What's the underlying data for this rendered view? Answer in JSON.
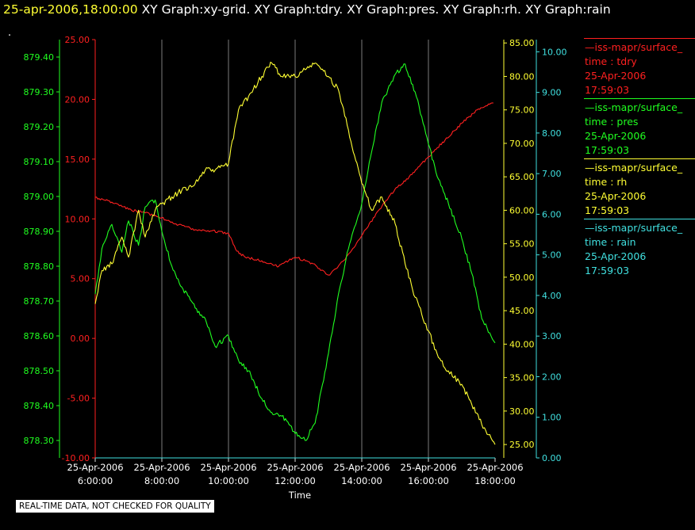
{
  "header": {
    "timestamp": "25-apr-2006,18:00:00",
    "titles": [
      "XY Graph:xy-grid.",
      "XY Graph:tdry.",
      "XY Graph:pres.",
      "XY Graph:rh.",
      "XY Graph:rain"
    ]
  },
  "dot": ".",
  "notice": "REAL-TIME DATA, NOT CHECKED FOR QUALITY",
  "legend": [
    {
      "source": "—iss-mapr/surface_",
      "field": "time : tdry",
      "date": "25-Apr-2006",
      "time": "17:59:03",
      "color": "#ff2020"
    },
    {
      "source": "—iss-mapr/surface_",
      "field": "time : pres",
      "date": "25-Apr-2006",
      "time": "17:59:03",
      "color": "#20ff20"
    },
    {
      "source": "—iss-mapr/surface_",
      "field": "time : rh",
      "date": "25-Apr-2006",
      "time": "17:59:03",
      "color": "#ffff33"
    },
    {
      "source": "—iss-mapr/surface_",
      "field": "time : rain",
      "date": "25-Apr-2006",
      "time": "17:59:03",
      "color": "#40e0e0"
    }
  ],
  "chart_data": {
    "type": "line",
    "xlabel": "Time",
    "x_range": [
      "06:00",
      "18:00"
    ],
    "x_ticks": [
      {
        "date": "25-Apr-2006",
        "time": "6:00:00"
      },
      {
        "date": "25-Apr-2006",
        "time": "8:00:00"
      },
      {
        "date": "25-Apr-2006",
        "time": "10:00:00"
      },
      {
        "date": "25-Apr-2006",
        "time": "12:00:00"
      },
      {
        "date": "25-Apr-2006",
        "time": "14:00:00"
      },
      {
        "date": "25-Apr-2006",
        "time": "16:00:00"
      },
      {
        "date": "25-Apr-2006",
        "time": "18:00:00"
      }
    ],
    "grid": "vertical",
    "axes": [
      {
        "id": "pres",
        "color": "#20ff20",
        "range": [
          878.25,
          879.45
        ],
        "ticks": [
          "878.30",
          "878.40",
          "878.50",
          "878.60",
          "878.70",
          "878.80",
          "878.90",
          "879.00",
          "879.10",
          "879.20",
          "879.30",
          "879.40"
        ]
      },
      {
        "id": "tdry",
        "color": "#ff2020",
        "range": [
          -10,
          25
        ],
        "ticks": [
          "-10.00",
          "-5.00",
          "0.00",
          "5.00",
          "10.00",
          "15.00",
          "20.00",
          "25.00"
        ]
      },
      {
        "id": "rh",
        "color": "#ffff33",
        "range": [
          23,
          85.5
        ],
        "ticks": [
          "25.00",
          "30.00",
          "35.00",
          "40.00",
          "45.00",
          "50.00",
          "55.00",
          "60.00",
          "65.00",
          "70.00",
          "75.00",
          "80.00",
          "85.00"
        ]
      },
      {
        "id": "rain",
        "color": "#40e0e0",
        "range": [
          0,
          10.3
        ],
        "ticks": [
          "0.00",
          "1.00",
          "2.00",
          "3.00",
          "4.00",
          "5.00",
          "6.00",
          "7.00",
          "8.00",
          "9.00",
          "10.00"
        ]
      }
    ],
    "series": [
      {
        "id": "tdry",
        "axis": "tdry",
        "color": "#ff2020",
        "x": [
          6.0,
          6.5,
          7.0,
          7.5,
          8.0,
          8.5,
          9.0,
          9.5,
          10.0,
          10.25,
          10.5,
          11.0,
          11.5,
          12.0,
          12.5,
          13.0,
          13.5,
          14.0,
          14.5,
          15.0,
          15.5,
          16.0,
          16.5,
          17.0,
          17.5,
          17.95
        ],
        "y": [
          11.8,
          11.4,
          10.8,
          10.5,
          10.1,
          9.5,
          9.1,
          9.0,
          8.8,
          7.3,
          6.8,
          6.5,
          6.0,
          6.8,
          6.3,
          5.3,
          6.6,
          8.6,
          10.7,
          12.5,
          13.7,
          15.2,
          16.6,
          18.0,
          19.2,
          19.7
        ]
      },
      {
        "id": "pres",
        "axis": "pres",
        "color": "#20ff20",
        "x": [
          6.0,
          6.2,
          6.5,
          6.8,
          7.0,
          7.3,
          7.5,
          7.8,
          8.0,
          8.3,
          8.6,
          9.0,
          9.3,
          9.6,
          10.0,
          10.3,
          10.6,
          11.0,
          11.3,
          11.6,
          12.0,
          12.3,
          12.6,
          13.0,
          13.3,
          13.6,
          14.0,
          14.3,
          14.6,
          15.0,
          15.3,
          15.6,
          16.0,
          16.3,
          16.6,
          17.0,
          17.3,
          17.6,
          18.0
        ],
        "y": [
          878.72,
          878.85,
          878.92,
          878.84,
          878.93,
          878.86,
          878.97,
          878.99,
          878.9,
          878.8,
          878.74,
          878.68,
          878.65,
          878.57,
          878.6,
          878.53,
          878.5,
          878.42,
          878.38,
          878.37,
          878.32,
          878.3,
          878.35,
          878.55,
          878.72,
          878.85,
          878.98,
          879.13,
          879.27,
          879.35,
          879.38,
          879.3,
          879.15,
          879.05,
          878.98,
          878.88,
          878.78,
          878.65,
          878.58
        ]
      },
      {
        "id": "rh",
        "axis": "rh",
        "color": "#ffff33",
        "x": [
          6.0,
          6.2,
          6.5,
          6.8,
          7.0,
          7.3,
          7.5,
          7.8,
          8.0,
          8.3,
          8.6,
          9.0,
          9.3,
          9.6,
          10.0,
          10.3,
          10.6,
          11.0,
          11.3,
          11.6,
          12.0,
          12.3,
          12.6,
          13.0,
          13.3,
          13.6,
          14.0,
          14.3,
          14.6,
          15.0,
          15.3,
          15.6,
          16.0,
          16.3,
          16.6,
          17.0,
          17.3,
          17.6,
          18.0
        ],
        "y": [
          46.0,
          51.0,
          52.0,
          56.0,
          53.0,
          60.0,
          56.0,
          60.0,
          61.0,
          62.0,
          63.0,
          64.0,
          66.0,
          66.0,
          67.0,
          75.0,
          77.0,
          80.0,
          82.0,
          80.0,
          80.0,
          81.0,
          82.0,
          80.0,
          78.0,
          72.0,
          64.0,
          60.0,
          62.0,
          58.0,
          52.0,
          47.0,
          42.0,
          38.0,
          36.0,
          34.0,
          31.0,
          28.0,
          25.0
        ]
      },
      {
        "id": "rain",
        "axis": "rain",
        "color": "#40e0e0",
        "x": [
          6.0,
          18.0
        ],
        "y": [
          0.0,
          0.0
        ]
      }
    ]
  }
}
